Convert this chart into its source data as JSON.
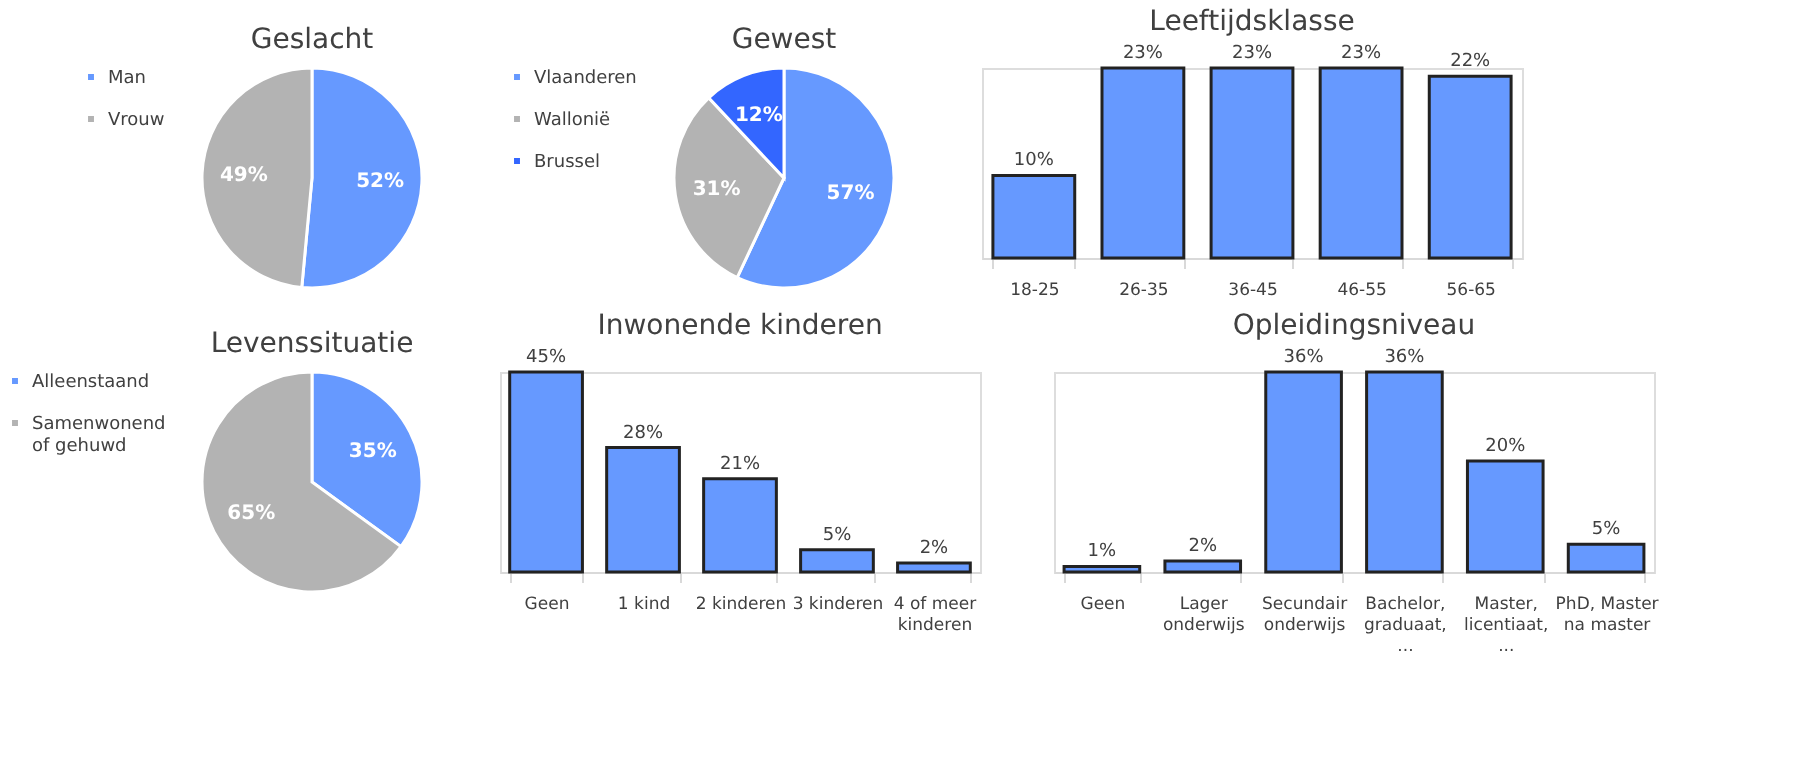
{
  "chart_data": [
    {
      "type": "pie",
      "title": "Geslacht",
      "categories": [
        "Man",
        "Vrouw"
      ],
      "values": [
        52,
        49
      ],
      "colors": [
        "#6699ff",
        "#b3b3b3"
      ],
      "value_labels": [
        "52%",
        "49%"
      ],
      "legend": "left"
    },
    {
      "type": "pie",
      "title": "Gewest",
      "categories": [
        "Vlaanderen",
        "Wallonië",
        "Brussel"
      ],
      "values": [
        57,
        31,
        12
      ],
      "colors": [
        "#6699ff",
        "#b3b3b3",
        "#3366ff"
      ],
      "value_labels": [
        "57%",
        "31%",
        "12%"
      ],
      "legend": "left"
    },
    {
      "type": "bar",
      "title": "Leeftijdsklasse",
      "categories": [
        "18-25",
        "26-35",
        "36-45",
        "46-55",
        "56-65"
      ],
      "values": [
        10,
        23,
        23,
        23,
        22
      ],
      "color": "#6699ff",
      "value_labels": [
        "10%",
        "23%",
        "23%",
        "23%",
        "22%"
      ]
    },
    {
      "type": "pie",
      "title": "Levenssituatie",
      "categories": [
        "Alleenstaand",
        "Samenwonend of gehuwd"
      ],
      "values": [
        35,
        65
      ],
      "colors": [
        "#6699ff",
        "#b3b3b3"
      ],
      "value_labels": [
        "35%",
        "65%"
      ],
      "legend": "left"
    },
    {
      "type": "bar",
      "title": "Inwonende kinderen",
      "categories": [
        "Geen",
        "1 kind",
        "2 kinderen",
        "3 kinderen",
        "4 of meer kinderen"
      ],
      "values": [
        45,
        28,
        21,
        5,
        2
      ],
      "color": "#6699ff",
      "value_labels": [
        "45%",
        "28%",
        "21%",
        "5%",
        "2%"
      ]
    },
    {
      "type": "bar",
      "title": "Opleidingsniveau",
      "categories": [
        "Geen",
        "Lager onderwijs",
        "Secundair onderwijs",
        "Bachelor, graduaat, ...",
        "Master, licentiaat, ...",
        "PhD, Master na master"
      ],
      "values": [
        1,
        2,
        36,
        36,
        20,
        5
      ],
      "color": "#6699ff",
      "value_labels": [
        "1%",
        "2%",
        "36%",
        "36%",
        "20%",
        "5%"
      ]
    }
  ]
}
